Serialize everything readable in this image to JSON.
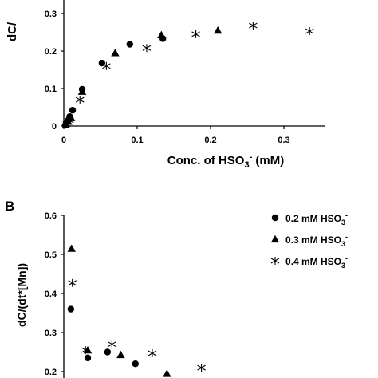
{
  "chart_data": [
    {
      "panel": "",
      "type": "scatter",
      "xlabel": "Conc. of HSO",
      "xlabel_sub": "3",
      "xlabel_sup": "-",
      "xlabel_tail": " (mM)",
      "ylabel": "dC/",
      "xlim": [
        0,
        0.37
      ],
      "ylim": [
        0,
        0.3
      ],
      "x_ticks": [
        {
          "v": 0,
          "label": "0"
        },
        {
          "v": 0.1,
          "label": "0.1"
        },
        {
          "v": 0.2,
          "label": "0.2"
        },
        {
          "v": 0.3,
          "label": "0.3"
        }
      ],
      "y_ticks": [
        {
          "v": 0,
          "label": "0"
        },
        {
          "v": 0.1,
          "label": "0.1"
        },
        {
          "v": 0.2,
          "label": "0.2"
        },
        {
          "v": 0.3,
          "label": "0.3"
        }
      ],
      "series": [
        {
          "marker": "circle",
          "x": [
            0.002,
            0.004,
            0.006,
            0.008,
            0.012,
            0.025,
            0.052,
            0.09,
            0.135
          ],
          "y": [
            0.002,
            0.008,
            0.015,
            0.025,
            0.042,
            0.098,
            0.168,
            0.218,
            0.233
          ]
        },
        {
          "marker": "triangle",
          "x": [
            0.003,
            0.006,
            0.01,
            0.025,
            0.07,
            0.133,
            0.21
          ],
          "y": [
            0.003,
            0.012,
            0.022,
            0.092,
            0.195,
            0.243,
            0.255
          ]
        },
        {
          "marker": "star",
          "x": [
            0.004,
            0.008,
            0.022,
            0.058,
            0.113,
            0.18,
            0.258,
            0.335
          ],
          "y": [
            0.005,
            0.015,
            0.07,
            0.16,
            0.208,
            0.245,
            0.268,
            0.253
          ]
        }
      ]
    },
    {
      "panel": "B",
      "type": "scatter",
      "ylabel": "dC/(dt*[Mn])",
      "ylim": [
        0.15,
        0.62
      ],
      "y_ticks": [
        {
          "v": 0.2,
          "label": "0.2"
        },
        {
          "v": 0.3,
          "label": "0.3"
        },
        {
          "v": 0.4,
          "label": "0.4"
        },
        {
          "v": 0.5,
          "label": "0.5"
        },
        {
          "v": 0.6,
          "label": "0.6"
        }
      ],
      "legend_position": "top-right",
      "series": [
        {
          "name": "0.2 mM HSO",
          "sub": "3",
          "sup": "-",
          "marker": "circle",
          "x": [
            0.002,
            0.025,
            0.052,
            0.09
          ],
          "y": [
            0.36,
            0.235,
            0.25,
            0.22
          ]
        },
        {
          "name": "0.3 mM HSO",
          "sub": "3",
          "sup": "-",
          "marker": "triangle",
          "x": [
            0.003,
            0.025,
            0.07,
            0.133
          ],
          "y": [
            0.515,
            0.255,
            0.243,
            0.195
          ]
        },
        {
          "name": "0.4 mM HSO",
          "sub": "3",
          "sup": "-",
          "marker": "star",
          "x": [
            0.004,
            0.022,
            0.058,
            0.113,
            0.18
          ],
          "y": [
            0.427,
            0.255,
            0.27,
            0.247,
            0.21
          ]
        }
      ]
    }
  ]
}
